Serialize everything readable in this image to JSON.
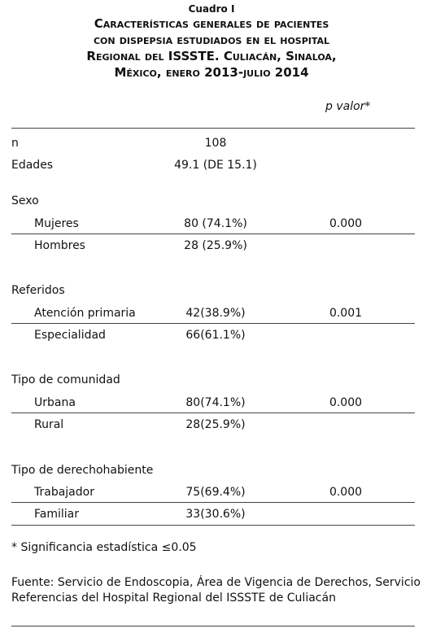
{
  "header": {
    "label": "Cuadro I",
    "title_lines": [
      "Características generales de pacientes",
      "con dispepsia estudiados en el hospital",
      "Regional del ISSSTE. Culiacán, Sinaloa,",
      "México, enero 2013-julio 2014"
    ]
  },
  "table": {
    "p_header": "p valor*",
    "rows": [
      [
        "n",
        "108",
        ""
      ],
      [
        "Edades",
        "49.1 (DE 15.1)",
        ""
      ],
      [
        "Sexo",
        "",
        ""
      ],
      [
        "Mujeres",
        "80 (74.1%)",
        "0.000"
      ],
      [
        "Hombres",
        "28 (25.9%)",
        ""
      ],
      [
        "Referidos",
        "",
        ""
      ],
      [
        "Atención primaria",
        "42(38.9%)",
        "0.001"
      ],
      [
        "Especialidad",
        "66(61.1%)",
        ""
      ],
      [
        "Tipo de comunidad",
        "",
        ""
      ],
      [
        "Urbana",
        "80(74.1%)",
        "0.000"
      ],
      [
        "Rural",
        "28(25.9%)",
        ""
      ],
      [
        "Tipo de derechohabiente",
        "",
        ""
      ],
      [
        "Trabajador",
        "75(69.4%)",
        "0.000"
      ],
      [
        "Familiar",
        "33(30.6%)",
        ""
      ]
    ]
  },
  "footnote": "* Significancia estadística ≤0.05",
  "source": [
    "Fuente: Servicio de Endoscopia, Área de Vigencia de Derechos, Servicio de",
    "Referencias del Hospital Regional del ISSSTE de Culiacán"
  ]
}
